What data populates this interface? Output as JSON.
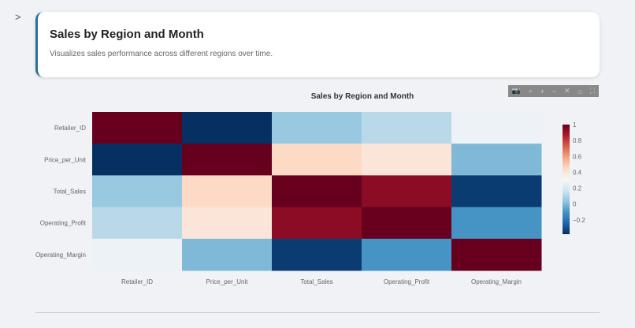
{
  "card": {
    "title": "Sales by Region and Month",
    "description": "Visualizes sales performance across different regions over time."
  },
  "modebar": [
    {
      "icon": "camera-icon",
      "g": "📷"
    },
    {
      "icon": "zoom-icon",
      "g": "⌕"
    },
    {
      "icon": "zoom-in-icon",
      "g": "+"
    },
    {
      "icon": "zoom-out-icon",
      "g": "−"
    },
    {
      "icon": "autoscale-icon",
      "g": "✕"
    },
    {
      "icon": "home-icon",
      "g": "⌂"
    },
    {
      "icon": "fullscreen-icon",
      "g": "⛶"
    }
  ],
  "chart_data": {
    "type": "heatmap",
    "title": "Sales by Region and Month",
    "x": [
      "Retailer_ID",
      "Price_per_Unit",
      "Total_Sales",
      "Operating_Profit",
      "Operating_Margin"
    ],
    "y": [
      "Retailer_ID",
      "Price_per_Unit",
      "Total_Sales",
      "Operating_Profit",
      "Operating_Margin"
    ],
    "z": [
      [
        1,
        -0.38,
        0.05,
        0.12,
        0.27
      ],
      [
        -0.38,
        1,
        0.45,
        0.4,
        0.0
      ],
      [
        0.05,
        0.45,
        1,
        0.93,
        -0.35
      ],
      [
        0.12,
        0.4,
        0.93,
        1,
        -0.1
      ],
      [
        0.27,
        0.0,
        -0.35,
        -0.1,
        1
      ]
    ],
    "zrange": [
      -0.38,
      1
    ],
    "colorscale": [
      "#053061",
      "#2166ac",
      "#4393c3",
      "#92c5de",
      "#d1e5f0",
      "#f7f7f7",
      "#fddbc7",
      "#f4a582",
      "#d6604d",
      "#b2182b",
      "#67001f"
    ],
    "colorbar_ticks": [
      1,
      0.8,
      0.6,
      0.4,
      0.2,
      0,
      -0.2
    ],
    "colorbar_tick_labels": [
      "1",
      "0.8",
      "0.6",
      "0.4",
      "0.2",
      "0",
      "−0.2"
    ]
  }
}
